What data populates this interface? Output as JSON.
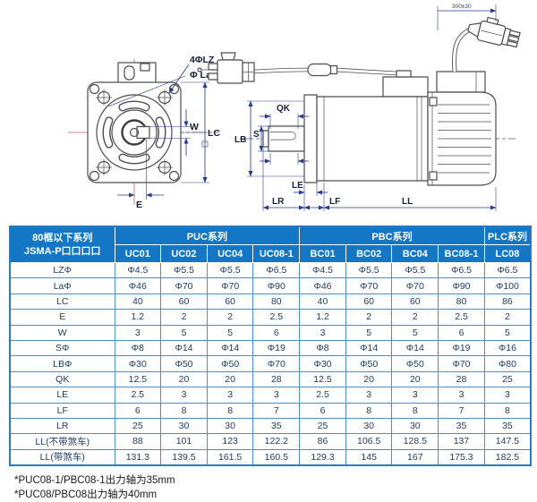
{
  "diagram": {
    "labels": {
      "holes": "4ΦLZ",
      "bolt_circle": "Φ La",
      "w": "W",
      "lc": "LC",
      "e": "E",
      "qk": "QK",
      "s": "S",
      "lb": "LB",
      "le": "LE",
      "lr": "LR",
      "lf": "LF",
      "ll": "LL",
      "cable_length": "300±30"
    }
  },
  "table": {
    "corner_header_line1": "80框以下系列",
    "corner_header_line2": "JSMA-P口口口口",
    "groups": [
      {
        "label": "PUC系列",
        "span": 4
      },
      {
        "label": "PBC系列",
        "span": 4
      },
      {
        "label": "PLC系列",
        "span": 1
      }
    ],
    "columns": [
      "UC01",
      "UC02",
      "UC04",
      "UC08-1",
      "BC01",
      "BC02",
      "BC04",
      "BC08-1",
      "LC08"
    ],
    "rows": [
      {
        "label": "LZΦ",
        "values": [
          "Φ4.5",
          "Φ5.5",
          "Φ5.5",
          "Φ6.5",
          "Φ4.5",
          "Φ5.5",
          "Φ5.5",
          "Φ6.5",
          "Φ6.5"
        ]
      },
      {
        "label": "LaΦ",
        "values": [
          "Φ46",
          "Φ70",
          "Φ70",
          "Φ90",
          "Φ46",
          "Φ70",
          "Φ70",
          "Φ90",
          "Φ100"
        ]
      },
      {
        "label": "LC",
        "values": [
          "40",
          "60",
          "60",
          "80",
          "40",
          "60",
          "60",
          "80",
          "86"
        ]
      },
      {
        "label": "E",
        "values": [
          "1.2",
          "2",
          "2",
          "2.5",
          "1.2",
          "2",
          "2",
          "2.5",
          "2"
        ]
      },
      {
        "label": "W",
        "values": [
          "3",
          "5",
          "5",
          "6",
          "3",
          "5",
          "5",
          "6",
          "5"
        ]
      },
      {
        "label": "SΦ",
        "values": [
          "Φ8",
          "Φ14",
          "Φ14",
          "Φ19",
          "Φ8",
          "Φ14",
          "Φ14",
          "Φ19",
          "Φ16"
        ]
      },
      {
        "label": "LBΦ",
        "values": [
          "Φ30",
          "Φ50",
          "Φ50",
          "Φ70",
          "Φ30",
          "Φ50",
          "Φ50",
          "Φ70",
          "Φ80"
        ]
      },
      {
        "label": "QK",
        "values": [
          "12.5",
          "20",
          "20",
          "28",
          "12.5",
          "20",
          "20",
          "28",
          "25"
        ]
      },
      {
        "label": "LE",
        "values": [
          "2.5",
          "3",
          "3",
          "3",
          "2.5",
          "3",
          "3",
          "3",
          "3"
        ]
      },
      {
        "label": "LF",
        "values": [
          "6",
          "8",
          "8",
          "7",
          "6",
          "8",
          "8",
          "7",
          "8"
        ]
      },
      {
        "label": "LR",
        "values": [
          "25",
          "30",
          "30",
          "35",
          "25",
          "30",
          "30",
          "35",
          "35"
        ]
      },
      {
        "label": "LL(不带煞车)",
        "values": [
          "88",
          "101",
          "123",
          "122.2",
          "86",
          "106.5",
          "128.5",
          "137",
          "147.5"
        ]
      },
      {
        "label": "LL(带煞车)",
        "values": [
          "131.3",
          "139.5",
          "161.5",
          "160.5",
          "129.3",
          "145",
          "167",
          "175.3",
          "182.5"
        ]
      }
    ]
  },
  "footnotes": [
    "*PUC08-1/PBC08-1出力轴为35mm",
    "*PUC08/PBC08出力轴为40mm"
  ],
  "colors": {
    "header_blue": "#1377c6",
    "grid_blue": "#4a90cf",
    "dimension_navy": "#2b3a8f",
    "centerline_red": "#c4605f",
    "cell_text": "#1e3a5f"
  }
}
